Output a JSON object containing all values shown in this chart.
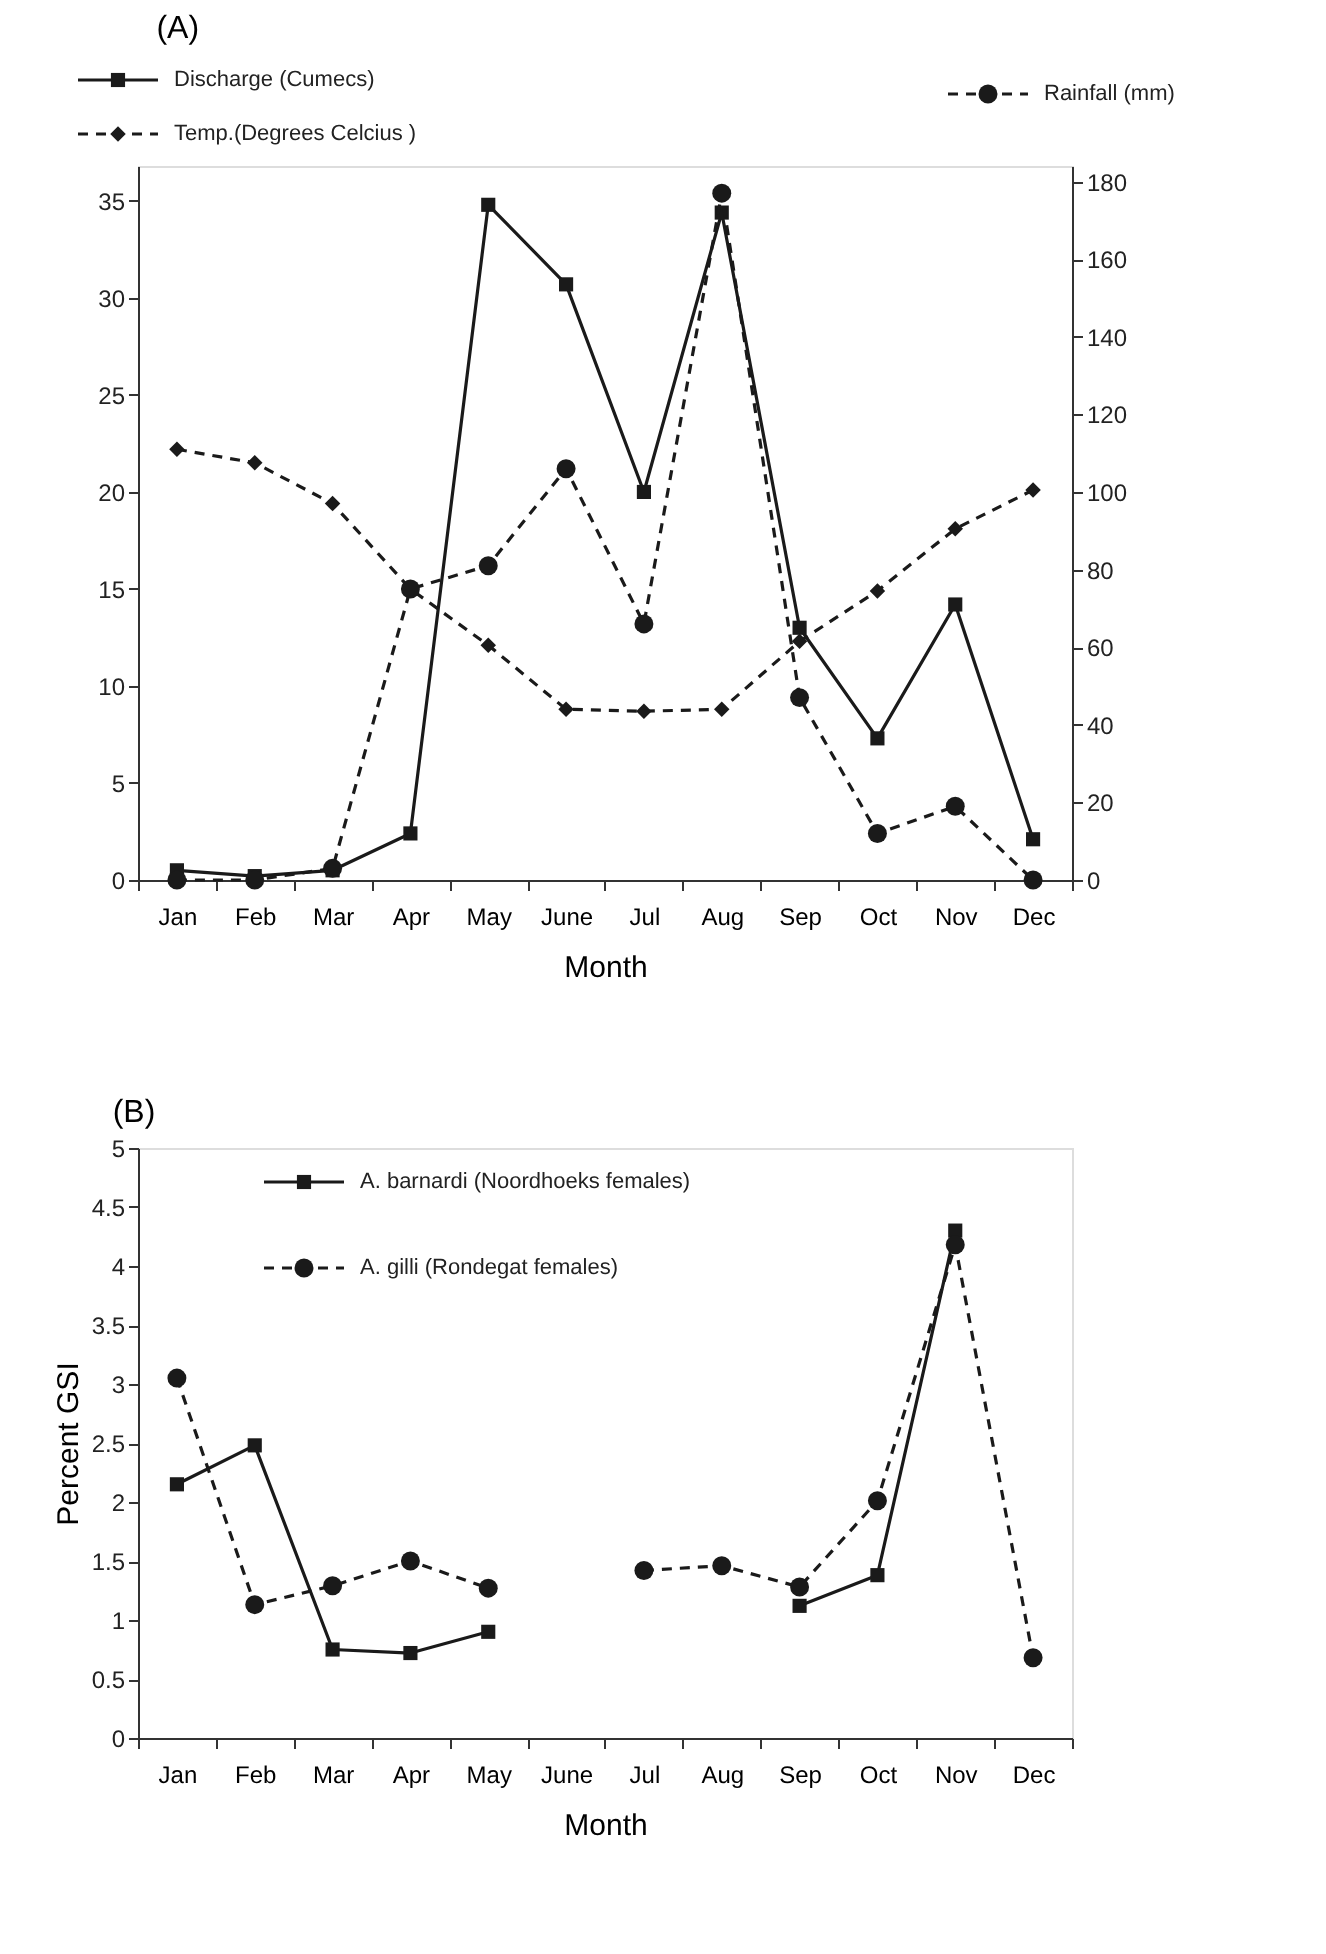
{
  "chart_data": [
    {
      "type": "line",
      "title": "(A)",
      "xlabel": "Month",
      "categories": [
        "Jan",
        "Feb",
        "Mar",
        "Apr",
        "May",
        "June",
        "Jul",
        "Aug",
        "Sep",
        "Oct",
        "Nov",
        "Dec"
      ],
      "series": [
        {
          "name": "Discharge (Cumecs)",
          "color": "#1a1a1a",
          "marker": "square",
          "line_style": "solid",
          "values": [
            0.5,
            0.2,
            0.5,
            2.4,
            34.8,
            30.7,
            20,
            34.4,
            13,
            7.3,
            14.2,
            2.1
          ]
        },
        {
          "name": "Temp.(Degrees Celcius )",
          "color": "#1a1a1a",
          "marker": "diamond",
          "line_style": "dashed",
          "values": [
            22.2,
            21.5,
            19.4,
            15,
            12.1,
            8.8,
            8.7,
            8.8,
            12.3,
            14.9,
            18.1,
            20.1
          ]
        },
        {
          "name": "Rainfall (mm)",
          "color": "#1a1a1a",
          "marker": "circle",
          "line_style": "dashed",
          "axis": "y2",
          "values": [
            0,
            0,
            3,
            75,
            81,
            106,
            66,
            177,
            47,
            12,
            19,
            0
          ]
        }
      ],
      "ylim": [
        0,
        36.8
      ],
      "yticks": [
        0,
        5,
        10,
        15,
        20,
        25,
        30,
        35
      ],
      "y2lim": [
        0,
        184
      ],
      "y2ticks": [
        0,
        20,
        40,
        60,
        80,
        100,
        120,
        140,
        160,
        180
      ],
      "grid": false,
      "legend": "top"
    },
    {
      "type": "line",
      "title": "(B)",
      "xlabel": "Month",
      "ylabel": "Percent GSI",
      "categories": [
        "Jan",
        "Feb",
        "Mar",
        "Apr",
        "May",
        "June",
        "Jul",
        "Aug",
        "Sep",
        "Oct",
        "Nov",
        "Dec"
      ],
      "series": [
        {
          "name": "A. barnardi (Noordhoeks females)",
          "color": "#1a1a1a",
          "marker": "square",
          "line_style": "solid",
          "values": [
            2.15,
            2.48,
            0.75,
            0.72,
            0.9,
            null,
            null,
            null,
            1.12,
            1.38,
            4.3,
            null
          ]
        },
        {
          "name": "A. gilli (Rondegat females)",
          "color": "#1a1a1a",
          "marker": "circle",
          "line_style": "dashed",
          "values": [
            3.05,
            1.13,
            1.29,
            1.5,
            1.27,
            null,
            1.42,
            1.46,
            1.28,
            2.01,
            4.18,
            0.68
          ]
        }
      ],
      "ylim": [
        0,
        5
      ],
      "yticks": [
        0,
        0.5,
        1,
        1.5,
        2,
        2.5,
        3,
        3.5,
        4,
        4.5,
        5
      ],
      "grid": false,
      "legend": "top left"
    }
  ]
}
